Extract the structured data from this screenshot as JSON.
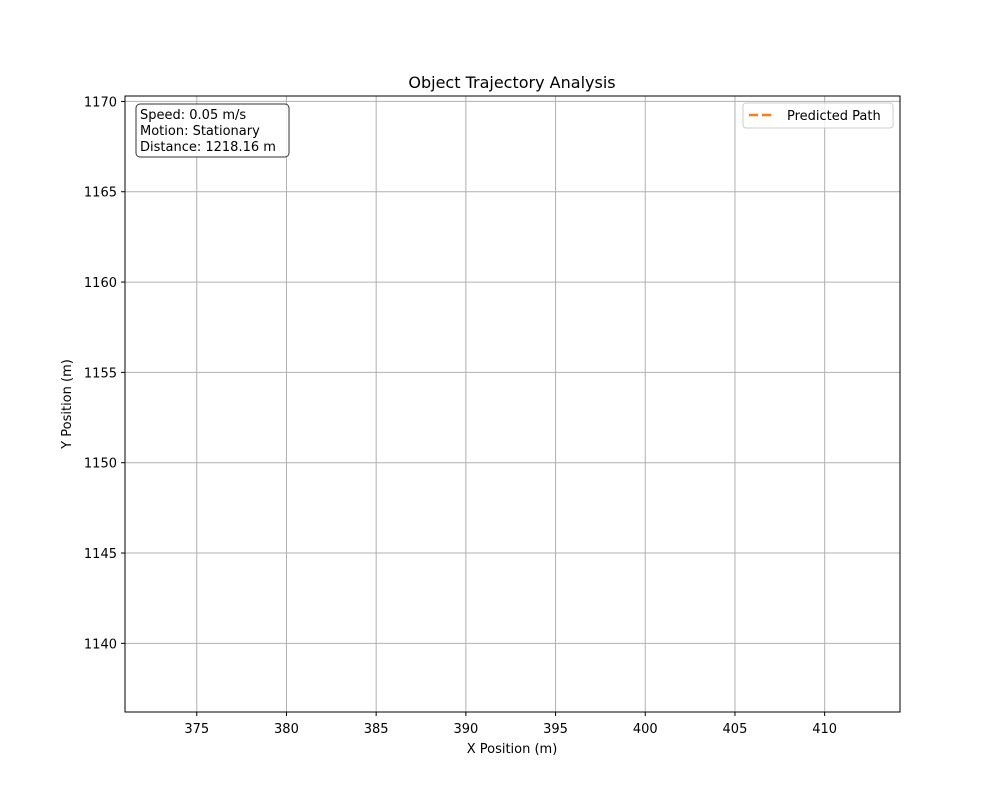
{
  "chart_data": {
    "type": "line",
    "title": "Object Trajectory Analysis",
    "xlabel": "X Position (m)",
    "ylabel": "Y Position (m)",
    "xlim": [
      371,
      414.2
    ],
    "ylim": [
      1136.2,
      1170.3
    ],
    "xticks": [
      375,
      380,
      385,
      390,
      395,
      400,
      405,
      410
    ],
    "yticks": [
      1140,
      1145,
      1150,
      1155,
      1160,
      1165,
      1170
    ],
    "grid": true,
    "legend": {
      "placement": "top-right",
      "entries": [
        {
          "label": "Predicted Path",
          "color": "#ff7f0e",
          "style": "dashed"
        }
      ]
    },
    "annotation": {
      "placement": "top-left",
      "lines": [
        "Speed: 0.05 m/s",
        "Motion: Stationary",
        "Distance: 1218.16 m"
      ]
    },
    "series": [
      {
        "name": "Predicted Path",
        "color": "#ff7f0e",
        "style": "dashed",
        "x": [],
        "y": []
      }
    ]
  },
  "colors": {
    "grid": "#b0b0b0",
    "axis": "#000000",
    "predicted": "#ff7f0e"
  }
}
